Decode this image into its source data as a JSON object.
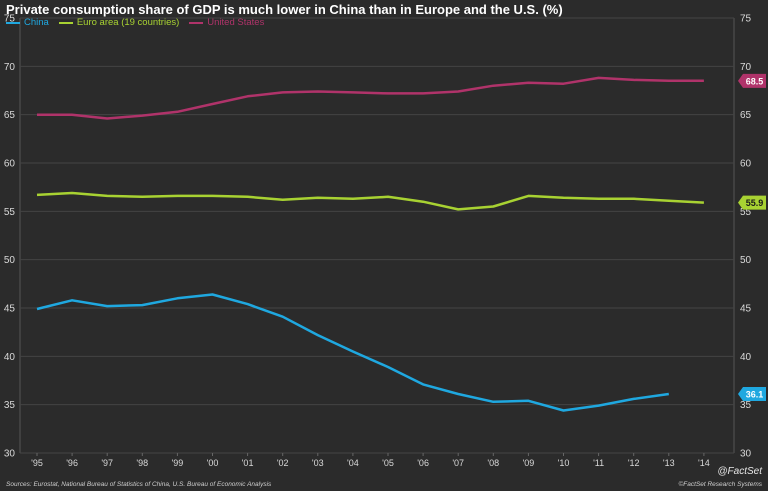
{
  "chart_data": {
    "type": "line",
    "title": "Private consumption share of GDP is much lower in China than in Europe and the U.S. (%)",
    "x": [
      "'95",
      "'96",
      "'97",
      "'98",
      "'99",
      "'00",
      "'01",
      "'02",
      "'03",
      "'04",
      "'05",
      "'06",
      "'07",
      "'08",
      "'09",
      "'10",
      "'11",
      "'12",
      "'13",
      "'14"
    ],
    "ylim": [
      30,
      75
    ],
    "yticks": [
      30,
      35,
      40,
      45,
      50,
      55,
      60,
      65,
      70,
      75
    ],
    "grid": "horizontal",
    "legend_position": "top-left",
    "series": [
      {
        "name": "China",
        "color": "#1fa8e0",
        "values": [
          44.9,
          45.8,
          45.2,
          45.3,
          46.0,
          46.4,
          45.4,
          44.1,
          42.2,
          40.5,
          38.9,
          37.1,
          36.1,
          35.3,
          35.4,
          34.4,
          34.9,
          35.6,
          36.1,
          null
        ],
        "end_label": "36.1"
      },
      {
        "name": "Euro area (19 countries)",
        "color": "#a8d232",
        "values": [
          56.7,
          56.9,
          56.6,
          56.5,
          56.6,
          56.6,
          56.5,
          56.2,
          56.4,
          56.3,
          56.5,
          56.0,
          55.2,
          55.5,
          56.6,
          56.4,
          56.3,
          56.3,
          56.1,
          55.9
        ],
        "end_label": "55.9"
      },
      {
        "name": "United States",
        "color": "#b0336a",
        "values": [
          65.0,
          65.0,
          64.6,
          64.9,
          65.3,
          66.1,
          66.9,
          67.3,
          67.4,
          67.3,
          67.2,
          67.2,
          67.4,
          68.0,
          68.3,
          68.2,
          68.8,
          68.6,
          68.5,
          68.5
        ],
        "end_label": "68.5"
      }
    ]
  },
  "footer": {
    "sources": "Sources: Eurostat, National Bureau of Statistics of China, U.S. Bureau of Economic Analysis",
    "copyright": "©FactSet Research Systems",
    "brand": "@FactSet"
  }
}
